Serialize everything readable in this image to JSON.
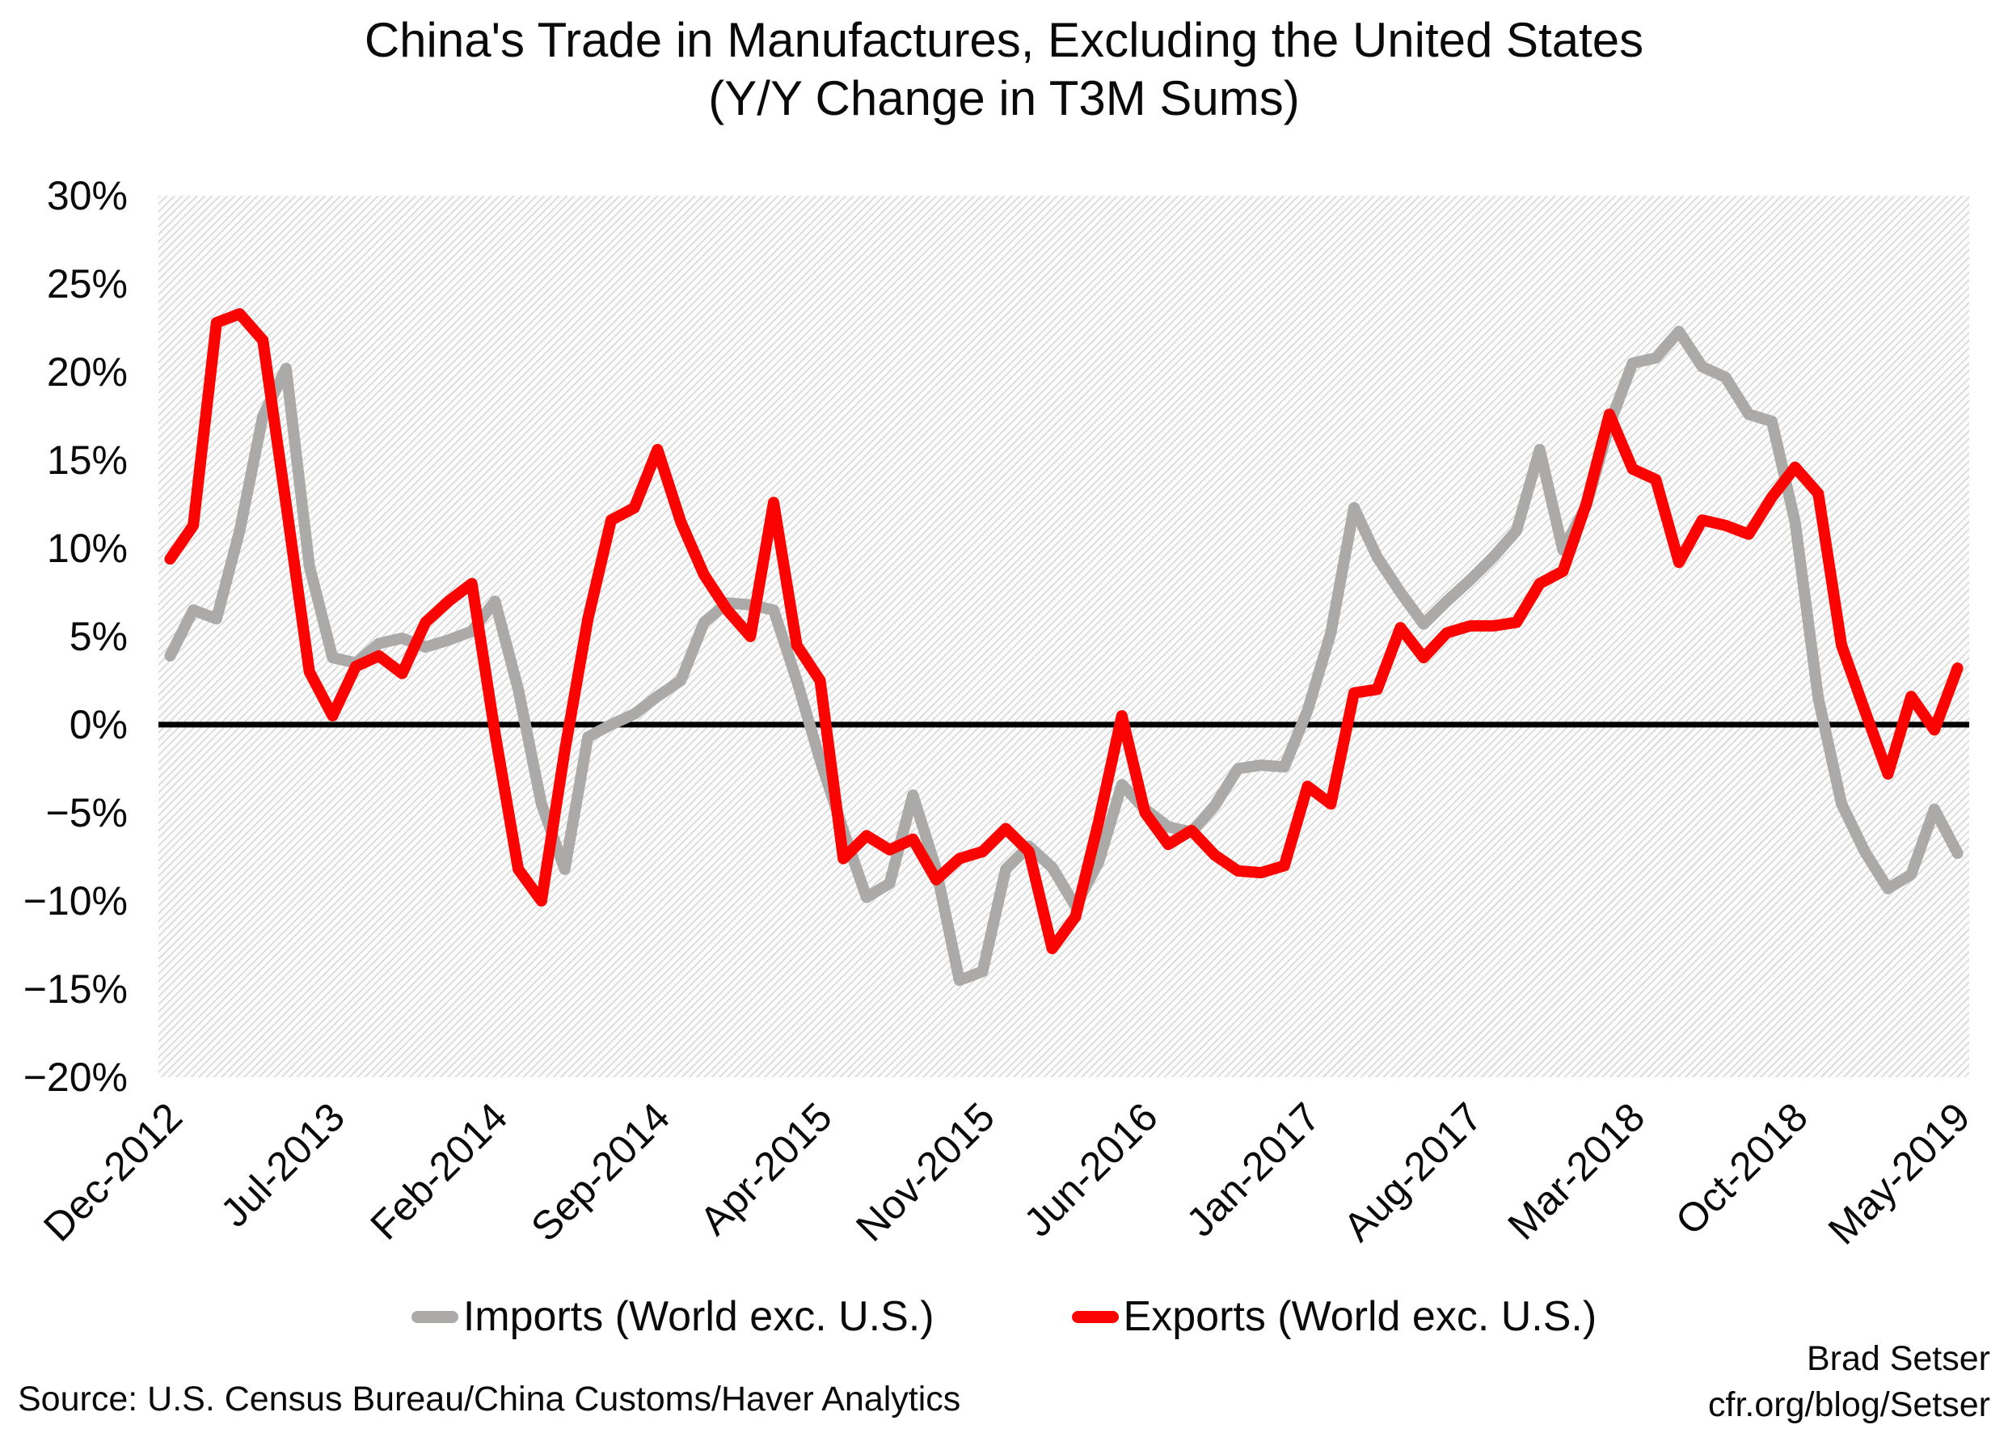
{
  "title": "China's Trade in Manufactures, Excluding the United States",
  "subtitle": "(Y/Y Change in T3M Sums)",
  "source": "Source: U.S. Census Bureau/China Customs/Haver Analytics",
  "credit": {
    "line1": "Brad Setser",
    "line2": "cfr.org/blog/Setser"
  },
  "chart_data": {
    "type": "line",
    "title": "China's Trade in Manufactures, Excluding the United States (Y/Y Change in T3M Sums)",
    "x_start": "Dec-2012",
    "x_end": "May-2019",
    "n_points": 78,
    "tick_interval": 7,
    "x_tick_labels": [
      "Dec-2012",
      "Jul-2013",
      "Feb-2014",
      "Sep-2014",
      "Apr-2015",
      "Nov-2015",
      "Jun-2016",
      "Jan-2017",
      "Aug-2017",
      "Mar-2018",
      "Oct-2018",
      "May-2019"
    ],
    "ylim": [
      -20,
      30
    ],
    "grid": false,
    "zero_line_color": "#000000",
    "legend_position": "bottom-center",
    "y_ticks": [
      {
        "value": 30,
        "label": "30%"
      },
      {
        "value": 25,
        "label": "25%"
      },
      {
        "value": 20,
        "label": "20%"
      },
      {
        "value": 15,
        "label": "15%"
      },
      {
        "value": 10,
        "label": "10%"
      },
      {
        "value": 5,
        "label": "5%"
      },
      {
        "value": 0,
        "label": "0%"
      },
      {
        "value": -5,
        "label": "−5%"
      },
      {
        "value": -10,
        "label": "−10%"
      },
      {
        "value": -15,
        "label": "−15%"
      },
      {
        "value": -20,
        "label": "−20%"
      }
    ],
    "series": [
      {
        "name": "Imports (World exc. U.S.)",
        "color": "#acaaa8",
        "values": [
          3.9,
          6.5,
          6.0,
          11.0,
          17.5,
          20.2,
          9.0,
          3.8,
          3.5,
          4.6,
          4.9,
          4.4,
          4.8,
          5.3,
          7.0,
          2.0,
          -4.5,
          -8.2,
          -0.7,
          0.0,
          0.6,
          1.6,
          2.5,
          5.8,
          6.9,
          6.8,
          6.5,
          2.5,
          -2.0,
          -6.0,
          -9.8,
          -9.0,
          -4.0,
          -8.2,
          -14.5,
          -14.0,
          -8.2,
          -6.9,
          -8.1,
          -10.3,
          -7.8,
          -3.4,
          -4.8,
          -5.8,
          -6.1,
          -4.6,
          -2.5,
          -2.3,
          -2.4,
          0.8,
          5.2,
          12.3,
          9.5,
          7.5,
          5.7,
          7.0,
          8.2,
          9.5,
          11.0,
          15.6,
          9.9,
          12.4,
          17.0,
          20.5,
          20.8,
          22.3,
          20.3,
          19.7,
          17.6,
          17.2,
          11.5,
          1.5,
          -4.5,
          -7.2,
          -9.3,
          -8.5,
          -4.8,
          -7.3
        ]
      },
      {
        "name": "Exports (World exc. U.S.)",
        "color": "#fb0300",
        "values": [
          9.4,
          11.3,
          22.8,
          23.3,
          21.8,
          12.5,
          3.0,
          0.5,
          3.3,
          3.9,
          2.9,
          5.8,
          7.0,
          8.0,
          -0.5,
          -8.2,
          -10.0,
          -1.5,
          6.0,
          11.6,
          12.3,
          15.6,
          11.5,
          8.5,
          6.5,
          5.0,
          12.6,
          4.5,
          2.5,
          -7.6,
          -6.3,
          -7.1,
          -6.5,
          -8.8,
          -7.6,
          -7.2,
          -5.9,
          -7.2,
          -12.7,
          -10.9,
          -5.5,
          0.5,
          -5.0,
          -6.8,
          -6.0,
          -7.4,
          -8.3,
          -8.4,
          -8.0,
          -3.5,
          -4.5,
          1.8,
          2.0,
          5.5,
          3.8,
          5.2,
          5.6,
          5.6,
          5.8,
          8.0,
          8.7,
          12.5,
          17.6,
          14.5,
          13.9,
          9.2,
          11.6,
          11.3,
          10.8,
          12.9,
          14.6,
          13.1,
          4.5,
          0.8,
          -2.8,
          1.6,
          -0.3,
          3.2
        ]
      }
    ]
  }
}
